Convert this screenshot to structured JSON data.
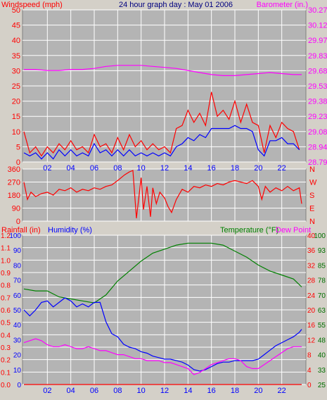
{
  "header": {
    "windspeed_label": "Windspeed (mph)",
    "title": "24 hour graph day : May 01 2006",
    "barometer_label": "Barometer (in.)"
  },
  "bottom_header": {
    "rainfall_label": "Rainfall (in)",
    "humidity_label": "Humidity (%)",
    "temperature_label": "Temperature (°F)",
    "dewpoint_label": "Dew Point"
  },
  "colors": {
    "background": "#d4d0c8",
    "plot_bg": "#b4b4b4",
    "grid": "#ffffff",
    "red": "#ff0000",
    "blue": "#0000ff",
    "magenta": "#ff00ff",
    "green": "#008000",
    "dark_green": "#007000",
    "title_blue": "#000080"
  },
  "x_ticks": [
    "02",
    "04",
    "06",
    "08",
    "10",
    "12",
    "14",
    "16",
    "18",
    "20",
    "22"
  ],
  "chart_data": [
    {
      "type": "line",
      "name": "wind-barometer",
      "x_unit": "hour",
      "xlim": [
        0,
        24
      ],
      "y_left": {
        "label": "Windspeed (mph)",
        "ticks": [
          0,
          5,
          10,
          15,
          20,
          25,
          30,
          35,
          40,
          45,
          50
        ],
        "ylim": [
          0,
          50
        ]
      },
      "y_right": {
        "label": "Barometer (in.)",
        "ticks": [
          "28.79",
          "28.94",
          "29.08",
          "29.23",
          "29.38",
          "29.53",
          "29.68",
          "29.83",
          "29.97",
          "30.12",
          "30.27"
        ],
        "ylim": [
          28.79,
          30.27
        ]
      },
      "series": [
        {
          "key": "gust",
          "axis": "left",
          "color": "#ff0000",
          "x": [
            0.0,
            0.5,
            1.0,
            1.5,
            2.0,
            2.5,
            3.0,
            3.5,
            4.0,
            4.5,
            5.0,
            5.5,
            6.0,
            6.5,
            7.0,
            7.5,
            8.0,
            8.5,
            9.0,
            9.5,
            10.0,
            10.5,
            11.0,
            11.5,
            12.0,
            12.5,
            13.0,
            13.5,
            14.0,
            14.5,
            15.0,
            15.5,
            16.0,
            16.5,
            17.0,
            17.5,
            18.0,
            18.5,
            19.0,
            19.5,
            20.0,
            20.5,
            21.0,
            21.5,
            22.0,
            22.5,
            23.0,
            23.5
          ],
          "y": [
            10,
            3,
            5,
            2,
            5,
            3,
            6,
            4,
            7,
            4,
            5,
            3,
            9,
            5,
            6,
            3,
            8,
            4,
            9,
            5,
            7,
            4,
            6,
            4,
            5,
            3,
            11,
            12,
            17,
            13,
            16,
            12,
            23,
            15,
            17,
            14,
            20,
            13,
            19,
            13,
            12,
            3,
            12,
            8,
            13,
            11,
            10,
            4
          ]
        },
        {
          "key": "average",
          "axis": "left",
          "color": "#0000ff",
          "x": [
            0.0,
            0.5,
            1.0,
            1.5,
            2.0,
            2.5,
            3.0,
            3.5,
            4.0,
            4.5,
            5.0,
            5.5,
            6.0,
            6.5,
            7.0,
            7.5,
            8.0,
            8.5,
            9.0,
            9.5,
            10.0,
            10.5,
            11.0,
            11.5,
            12.0,
            12.5,
            13.0,
            13.5,
            14.0,
            14.5,
            15.0,
            15.5,
            16.0,
            16.5,
            17.0,
            17.5,
            18.0,
            18.5,
            19.0,
            19.5,
            20.0,
            20.5,
            21.0,
            21.5,
            22.0,
            22.5,
            23.0,
            23.5
          ],
          "y": [
            3,
            2,
            3,
            1,
            3,
            1,
            4,
            2,
            4,
            2,
            3,
            2,
            6,
            3,
            4,
            2,
            4,
            2,
            4,
            2,
            3,
            2,
            3,
            2,
            3,
            2,
            5,
            6,
            8,
            7,
            9,
            8,
            11,
            11,
            11,
            11,
            12,
            11,
            11,
            10,
            4,
            2,
            7,
            7,
            8,
            6,
            6,
            4
          ]
        },
        {
          "key": "barometer",
          "axis": "right",
          "color": "#ff00ff",
          "x": [
            0,
            1,
            2,
            3,
            4,
            5,
            6,
            7,
            8,
            9,
            10,
            11,
            12,
            13,
            14,
            15,
            16,
            17,
            18,
            19,
            20,
            21,
            22,
            23,
            23.7
          ],
          "y": [
            29.69,
            29.69,
            29.68,
            29.68,
            29.69,
            29.69,
            29.7,
            29.72,
            29.73,
            29.73,
            29.73,
            29.72,
            29.71,
            29.7,
            29.68,
            29.66,
            29.64,
            29.63,
            29.63,
            29.64,
            29.65,
            29.66,
            29.65,
            29.64,
            29.64
          ]
        }
      ]
    },
    {
      "type": "line",
      "name": "wind-direction",
      "xlim": [
        0,
        24
      ],
      "y_left": {
        "ticks": [
          0,
          90,
          180,
          270,
          360
        ],
        "ylim": [
          0,
          360
        ]
      },
      "y_right": {
        "ticks": [
          "N",
          "E",
          "S",
          "W",
          "N"
        ]
      },
      "series": [
        {
          "key": "direction",
          "color": "#ff0000",
          "x": [
            0.0,
            0.3,
            0.6,
            1.0,
            1.5,
            2.0,
            2.5,
            3.0,
            3.5,
            4.0,
            4.5,
            5.0,
            5.5,
            6.0,
            6.5,
            7.0,
            7.5,
            8.0,
            8.3,
            8.6,
            9.0,
            9.3,
            9.6,
            10.0,
            10.2,
            10.5,
            10.8,
            11.0,
            11.3,
            11.6,
            12.0,
            12.3,
            12.6,
            13.0,
            13.5,
            14.0,
            14.5,
            15.0,
            15.5,
            16.0,
            16.5,
            17.0,
            17.5,
            18.0,
            18.5,
            19.0,
            19.5,
            20.0,
            20.3,
            20.6,
            21.0,
            21.5,
            22.0,
            22.5,
            23.0,
            23.5,
            23.7
          ],
          "y": [
            270,
            150,
            200,
            170,
            190,
            200,
            180,
            220,
            210,
            230,
            200,
            220,
            210,
            230,
            220,
            240,
            250,
            280,
            300,
            320,
            340,
            350,
            20,
            300,
            80,
            240,
            30,
            230,
            120,
            200,
            160,
            100,
            60,
            150,
            220,
            200,
            240,
            230,
            250,
            240,
            260,
            250,
            270,
            280,
            270,
            260,
            280,
            240,
            150,
            240,
            200,
            230,
            210,
            240,
            210,
            230,
            120
          ]
        }
      ]
    },
    {
      "type": "line",
      "name": "humidity-temperature",
      "xlim": [
        0,
        24
      ],
      "y_left_outer": {
        "label": "Rainfall (in)",
        "ticks": [
          "0.0",
          "0.1",
          "0.2",
          "0.3",
          "0.4",
          "0.5",
          "0.6",
          "0.7",
          "0.8",
          "0.9",
          "1.0",
          "1.1",
          "1.2"
        ],
        "ylim": [
          0,
          1.2
        ]
      },
      "y_left_inner": {
        "label": "Humidity (%)",
        "ticks": [
          0,
          10,
          20,
          30,
          40,
          50,
          60,
          70,
          80,
          90,
          100
        ],
        "ylim": [
          0,
          100
        ]
      },
      "y_right_inner": {
        "label": "Temperature (°F)",
        "ticks": [
          0,
          4,
          8,
          12,
          16,
          20,
          24,
          28,
          32,
          36,
          40
        ],
        "ylim": [
          0,
          40
        ]
      },
      "y_right_outer": {
        "ticks": [
          25,
          33,
          40,
          48,
          55,
          63,
          70,
          78,
          85,
          93,
          100
        ],
        "ylim": [
          25,
          100
        ]
      },
      "series": [
        {
          "key": "temperature",
          "color": "#008000",
          "axis": "right_outer",
          "x": [
            0,
            1,
            2,
            3,
            4,
            5,
            6,
            7,
            8,
            9,
            10,
            11,
            12,
            13,
            14,
            15,
            16,
            17,
            18,
            19,
            20,
            21,
            22,
            23,
            23.7
          ],
          "y": [
            73,
            72,
            72,
            69,
            68,
            67,
            66,
            70,
            77,
            82,
            87,
            91,
            93,
            95,
            96,
            96,
            96,
            95,
            92,
            89,
            85,
            82,
            80,
            78,
            74
          ]
        },
        {
          "key": "humidity",
          "color": "#0000ff",
          "axis": "left_inner",
          "x": [
            0,
            0.5,
            1,
            1.5,
            2,
            2.5,
            3,
            3.5,
            4,
            4.5,
            5,
            5.5,
            6,
            6.5,
            7,
            7.5,
            8,
            8.5,
            9,
            9.5,
            10,
            10.5,
            11,
            11.5,
            12,
            12.5,
            13,
            13.5,
            14,
            14.5,
            15,
            15.5,
            16,
            16.5,
            17,
            17.5,
            18,
            18.5,
            19,
            19.5,
            20,
            20.5,
            21,
            21.5,
            22,
            22.5,
            23,
            23.5,
            23.7
          ],
          "y": [
            50,
            46,
            50,
            55,
            56,
            52,
            55,
            58,
            56,
            52,
            54,
            52,
            55,
            55,
            42,
            34,
            32,
            27,
            25,
            24,
            22,
            21,
            19,
            18,
            17,
            17,
            16,
            15,
            13,
            10,
            9,
            10,
            12,
            14,
            15,
            15,
            16,
            16,
            16,
            16,
            17,
            20,
            23,
            26,
            28,
            30,
            32,
            35,
            37
          ]
        },
        {
          "key": "dewpoint",
          "color": "#ff00ff",
          "axis": "right_outer",
          "x": [
            0,
            0.5,
            1,
            1.5,
            2,
            2.5,
            3,
            3.5,
            4,
            4.5,
            5,
            5.5,
            6,
            6.5,
            7,
            7.5,
            8,
            8.5,
            9,
            9.5,
            10,
            10.5,
            11,
            11.5,
            12,
            12.5,
            13,
            13.5,
            14,
            14.5,
            15,
            15.5,
            16,
            16.5,
            17,
            17.5,
            18,
            18.5,
            19,
            19.5,
            20,
            20.5,
            21,
            21.5,
            22,
            22.5,
            23,
            23.5,
            23.7
          ],
          "y": [
            46,
            47,
            48,
            47,
            45,
            44,
            44,
            45,
            44,
            43,
            43,
            44,
            43,
            42,
            42,
            41,
            40,
            40,
            39,
            38,
            38,
            37,
            37,
            37,
            36,
            36,
            35,
            34,
            33,
            30,
            31,
            33,
            35,
            36,
            37,
            38,
            38,
            37,
            34,
            33,
            33,
            35,
            37,
            39,
            41,
            43,
            44,
            44,
            44
          ]
        },
        {
          "key": "rainfall",
          "color": "#ff0000",
          "axis": "left_outer",
          "x": [
            0,
            23.7
          ],
          "y": [
            0,
            0
          ]
        }
      ]
    }
  ]
}
